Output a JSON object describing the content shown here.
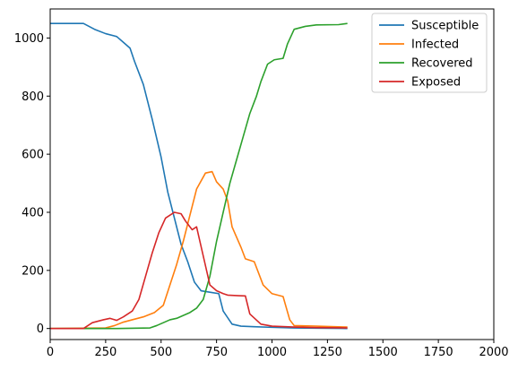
{
  "chart_data": {
    "type": "line",
    "title": "",
    "xlabel": "",
    "ylabel": "",
    "xlim": [
      0,
      2000
    ],
    "ylim": [
      -38,
      1100
    ],
    "xticks": [
      0,
      250,
      500,
      750,
      1000,
      1250,
      1500,
      1750,
      2000
    ],
    "yticks": [
      0,
      200,
      400,
      600,
      800,
      1000
    ],
    "xtick_labels": [
      "0",
      "250",
      "500",
      "750",
      "1000",
      "1250",
      "1500",
      "1750",
      "2000"
    ],
    "ytick_labels": [
      "0",
      "200",
      "400",
      "600",
      "800",
      "1000"
    ],
    "grid": false,
    "legend_position": "top-right",
    "series": [
      {
        "name": "Susceptible",
        "color": "#1f77b4",
        "points": [
          [
            0,
            1050
          ],
          [
            150,
            1050
          ],
          [
            200,
            1030
          ],
          [
            250,
            1015
          ],
          [
            300,
            1005
          ],
          [
            330,
            985
          ],
          [
            360,
            965
          ],
          [
            380,
            920
          ],
          [
            420,
            840
          ],
          [
            460,
            720
          ],
          [
            500,
            590
          ],
          [
            530,
            470
          ],
          [
            560,
            380
          ],
          [
            590,
            290
          ],
          [
            620,
            230
          ],
          [
            650,
            160
          ],
          [
            680,
            130
          ],
          [
            720,
            125
          ],
          [
            760,
            120
          ],
          [
            780,
            60
          ],
          [
            820,
            15
          ],
          [
            860,
            8
          ],
          [
            920,
            6
          ],
          [
            1000,
            4
          ],
          [
            1100,
            2
          ],
          [
            1200,
            1
          ],
          [
            1340,
            0
          ]
        ]
      },
      {
        "name": "Infected",
        "color": "#ff7f0e",
        "points": [
          [
            0,
            0
          ],
          [
            250,
            2
          ],
          [
            290,
            10
          ],
          [
            330,
            22
          ],
          [
            370,
            30
          ],
          [
            420,
            40
          ],
          [
            470,
            55
          ],
          [
            510,
            80
          ],
          [
            540,
            150
          ],
          [
            570,
            220
          ],
          [
            600,
            300
          ],
          [
            630,
            390
          ],
          [
            660,
            480
          ],
          [
            700,
            535
          ],
          [
            730,
            540
          ],
          [
            750,
            505
          ],
          [
            780,
            480
          ],
          [
            800,
            440
          ],
          [
            820,
            350
          ],
          [
            860,
            280
          ],
          [
            880,
            240
          ],
          [
            920,
            230
          ],
          [
            960,
            150
          ],
          [
            1000,
            120
          ],
          [
            1050,
            110
          ],
          [
            1080,
            30
          ],
          [
            1100,
            10
          ],
          [
            1200,
            8
          ],
          [
            1340,
            5
          ]
        ]
      },
      {
        "name": "Recovered",
        "color": "#2ca02c",
        "points": [
          [
            0,
            0
          ],
          [
            300,
            0
          ],
          [
            450,
            2
          ],
          [
            480,
            10
          ],
          [
            510,
            20
          ],
          [
            540,
            30
          ],
          [
            570,
            35
          ],
          [
            600,
            45
          ],
          [
            630,
            55
          ],
          [
            660,
            70
          ],
          [
            690,
            100
          ],
          [
            720,
            180
          ],
          [
            750,
            300
          ],
          [
            780,
            400
          ],
          [
            810,
            500
          ],
          [
            840,
            580
          ],
          [
            870,
            660
          ],
          [
            900,
            740
          ],
          [
            930,
            800
          ],
          [
            950,
            850
          ],
          [
            980,
            910
          ],
          [
            1010,
            925
          ],
          [
            1050,
            930
          ],
          [
            1070,
            980
          ],
          [
            1100,
            1030
          ],
          [
            1150,
            1040
          ],
          [
            1200,
            1045
          ],
          [
            1300,
            1046
          ],
          [
            1340,
            1050
          ]
        ]
      },
      {
        "name": "Exposed",
        "color": "#d62728",
        "points": [
          [
            0,
            0
          ],
          [
            150,
            0
          ],
          [
            190,
            20
          ],
          [
            240,
            30
          ],
          [
            270,
            35
          ],
          [
            300,
            28
          ],
          [
            330,
            40
          ],
          [
            370,
            60
          ],
          [
            400,
            100
          ],
          [
            430,
            180
          ],
          [
            460,
            260
          ],
          [
            490,
            330
          ],
          [
            520,
            380
          ],
          [
            560,
            400
          ],
          [
            590,
            395
          ],
          [
            610,
            370
          ],
          [
            640,
            340
          ],
          [
            660,
            350
          ],
          [
            690,
            250
          ],
          [
            720,
            150
          ],
          [
            750,
            130
          ],
          [
            780,
            120
          ],
          [
            800,
            115
          ],
          [
            850,
            113
          ],
          [
            880,
            112
          ],
          [
            900,
            50
          ],
          [
            950,
            15
          ],
          [
            1000,
            8
          ],
          [
            1100,
            5
          ],
          [
            1200,
            3
          ],
          [
            1340,
            2
          ]
        ]
      }
    ]
  }
}
